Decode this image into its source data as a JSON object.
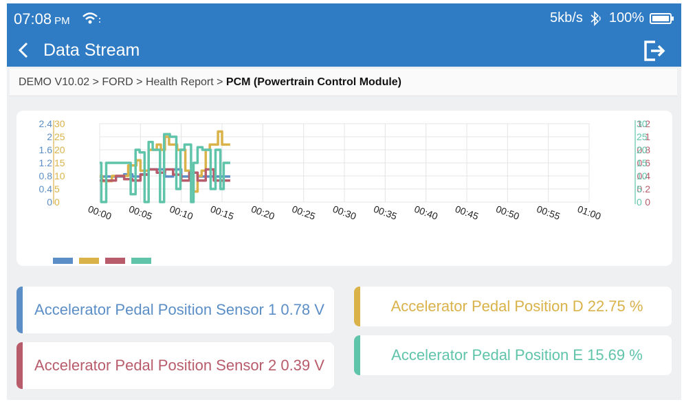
{
  "status": {
    "time": "07:08",
    "ampm": "PM",
    "speed": "5kb/s",
    "battery": "100%"
  },
  "header": {
    "title": "Data Stream"
  },
  "breadcrumb": {
    "path": "DEMO V10.02 > FORD > Health Report > ",
    "current": "PCM (Powertrain Control Module)"
  },
  "colors": {
    "blue": "#5b8ec6",
    "yellow": "#d9b24a",
    "red": "#b85b6b",
    "teal": "#5fc4aa",
    "primary": "#2f7cc4"
  },
  "tiles": [
    {
      "name": "Accelerator Pedal Position Sensor 1",
      "value": "0.78",
      "unit": "V",
      "color": "#5b8ec6"
    },
    {
      "name": "Accelerator Pedal Position Sensor 2",
      "value": "0.39",
      "unit": "V",
      "color": "#b85b6b"
    },
    {
      "name": "Accelerator Pedal Position D",
      "value": "22.75",
      "unit": "%",
      "color": "#d9b24a"
    },
    {
      "name": "Accelerator Pedal Position E",
      "value": "15.69",
      "unit": "%",
      "color": "#5fc4aa"
    }
  ],
  "tile_labels": {
    "t1": "Accelerator Pedal Position Sensor 1 0.78 V",
    "t2": "Accelerator Pedal Position Sensor 2 0.39 V",
    "t3": "Accelerator Pedal Position D 22.75 %",
    "t4": "Accelerator Pedal Position E 15.69 %"
  },
  "chart_data": {
    "type": "line",
    "x_ticks": [
      "00:00",
      "00:05",
      "00:10",
      "00:15",
      "00:20",
      "00:25",
      "00:30",
      "00:35",
      "00:40",
      "00:45",
      "00:50",
      "00:55",
      "01:00"
    ],
    "axes": {
      "left_outer": {
        "ticks": [
          "2.4",
          "2",
          "1.6",
          "1.2",
          "0.8",
          "0.4",
          "0"
        ],
        "color": "#5b8ec6"
      },
      "left_inner": {
        "ticks": [
          "30",
          "25",
          "20",
          "15",
          "10",
          "5",
          "0"
        ],
        "color": "#d9b24a"
      },
      "right_inner": {
        "ticks": [
          "1.2",
          "1",
          "0.8",
          "0.6",
          "0.4",
          "0.2",
          "0"
        ],
        "color": "#b85b6b"
      },
      "right_outer": {
        "ticks": [
          "30",
          "25",
          "20",
          "15",
          "10",
          "5",
          "0"
        ],
        "color": "#5fc4aa"
      }
    },
    "series": [
      {
        "name": "Accelerator Pedal Position Sensor 1",
        "axis": "left_outer",
        "max": 2.4,
        "color": "#5b8ec6",
        "x": [
          0,
          1,
          1,
          3,
          3,
          4,
          4,
          5,
          5,
          6,
          6,
          7,
          8,
          8,
          9,
          9,
          10,
          10,
          11,
          11,
          12,
          12,
          13,
          13,
          14,
          14,
          15,
          15,
          16
        ],
        "y": [
          0.78,
          0.78,
          0.78,
          0.78,
          0.85,
          0.85,
          0.78,
          0.78,
          0.85,
          0.85,
          1.0,
          1.0,
          1.0,
          0.78,
          0.78,
          1.0,
          1.0,
          0.78,
          0.78,
          0.9,
          0.9,
          0.78,
          0.78,
          0.78,
          0.78,
          0.78,
          0.78,
          0.78,
          0.78
        ]
      },
      {
        "name": "Accelerator Pedal Position D",
        "axis": "left_inner",
        "max": 30,
        "color": "#d9b24a",
        "x": [
          0,
          0.3,
          0.3,
          1.5,
          1.5,
          3.5,
          3.5,
          4.5,
          4.5,
          5,
          5,
          6,
          6,
          7,
          7,
          7.5,
          7.5,
          8,
          8,
          8.5,
          8.5,
          9.5,
          9.5,
          10.5,
          10.5,
          11,
          11,
          11.5,
          11.5,
          12,
          12,
          12.5,
          12.5,
          13,
          13,
          13.5,
          13.5,
          14.5,
          14.5,
          15,
          15,
          16
        ],
        "y": [
          10,
          10,
          8,
          8,
          10,
          10,
          14,
          14,
          16,
          16,
          12,
          12,
          20,
          20,
          22,
          22,
          20,
          20,
          25,
          25,
          22,
          22,
          20,
          20,
          12,
          12,
          10,
          10,
          4,
          4,
          10,
          10,
          12,
          12,
          20,
          20,
          22,
          22,
          27,
          27,
          22,
          22
        ]
      },
      {
        "name": "Accelerator Pedal Position Sensor 2",
        "axis": "right_inner",
        "max": 1.2,
        "color": "#b85b6b",
        "x": [
          0,
          1,
          1,
          2,
          2,
          3,
          3,
          4,
          4,
          5,
          5,
          6,
          6,
          7,
          7,
          8,
          8,
          9,
          9,
          10,
          10,
          11,
          11,
          12,
          12,
          13,
          13,
          14,
          14,
          15,
          15,
          16
        ],
        "y": [
          0.33,
          0.33,
          0.33,
          0.33,
          0.4,
          0.4,
          0.35,
          0.35,
          0.33,
          0.33,
          0.42,
          0.42,
          0.5,
          0.5,
          0.45,
          0.45,
          0.5,
          0.5,
          0.42,
          0.42,
          0.33,
          0.33,
          0.45,
          0.45,
          0.33,
          0.33,
          0.5,
          0.5,
          0.33,
          0.33,
          0.33,
          0.33
        ]
      },
      {
        "name": "Accelerator Pedal Position E",
        "axis": "right_outer",
        "max": 30,
        "color": "#5fc4aa",
        "x": [
          0,
          0.2,
          0.2,
          0.8,
          0.8,
          1.3,
          1.3,
          3.8,
          3.8,
          4.4,
          4.4,
          4.9,
          4.9,
          5.5,
          5.5,
          6,
          6,
          6.5,
          6.5,
          7.4,
          7.4,
          7.9,
          7.9,
          8.6,
          8.6,
          9.4,
          9.4,
          9.9,
          9.9,
          10.4,
          10.4,
          11.2,
          11.2,
          11.5,
          11.5,
          12,
          12,
          12.6,
          12.6,
          13.6,
          13.6,
          14.2,
          14.2,
          14.8,
          14.8,
          15.2,
          15.2,
          16
        ],
        "y": [
          15,
          15,
          0,
          0,
          15,
          15,
          15,
          15,
          3,
          3,
          20,
          20,
          19,
          19,
          0,
          0,
          23,
          23,
          20,
          20,
          0,
          0,
          26,
          26,
          25,
          25,
          5,
          5,
          20,
          20,
          22,
          22,
          0,
          0,
          15,
          15,
          21,
          21,
          20,
          20,
          5,
          5,
          20,
          20,
          5,
          5,
          15,
          15
        ]
      }
    ]
  }
}
